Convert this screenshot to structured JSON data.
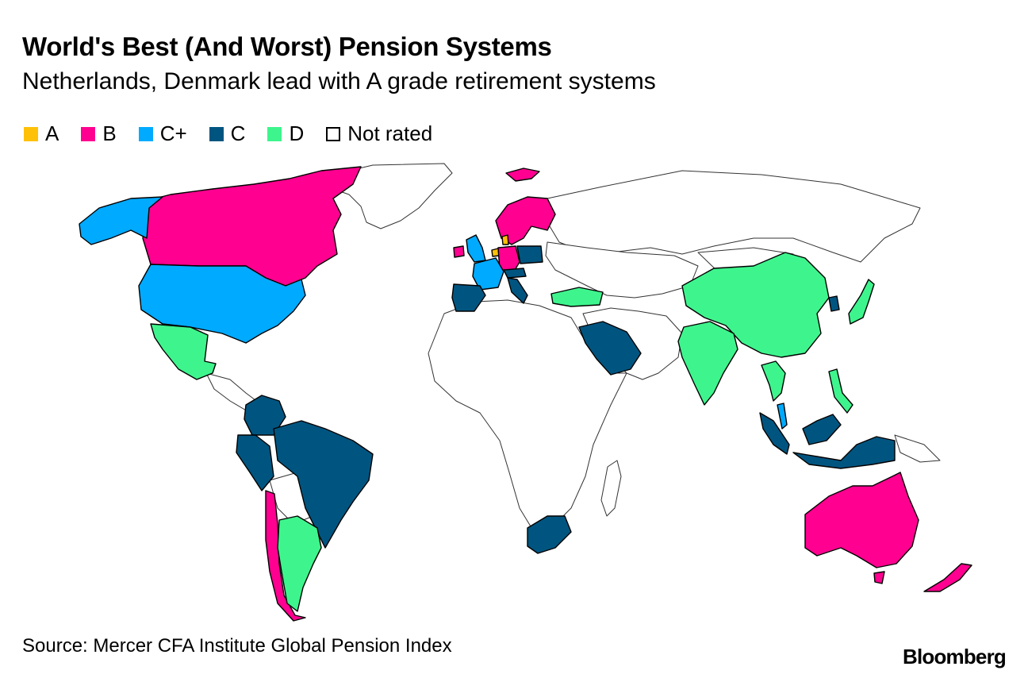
{
  "header": {
    "title": "World's Best (And Worst) Pension Systems",
    "subtitle": "Netherlands, Denmark lead with A grade retirement systems"
  },
  "legend": {
    "items": [
      {
        "label": "A",
        "color": "#FFC107"
      },
      {
        "label": "B",
        "color": "#FF0090"
      },
      {
        "label": "C+",
        "color": "#00AAFF"
      },
      {
        "label": "C",
        "color": "#005580"
      },
      {
        "label": "D",
        "color": "#3EF58D"
      },
      {
        "label": "Not rated",
        "color": "#FFFFFF"
      }
    ]
  },
  "footer": {
    "source": "Source: Mercer CFA Institute Global Pension Index",
    "brand": "Bloomberg"
  },
  "colors": {
    "A": "#FFC107",
    "B": "#FF0090",
    "C_plus": "#00AAFF",
    "C": "#005580",
    "D": "#3EF58D",
    "not_rated": "#FFFFFF"
  }
}
